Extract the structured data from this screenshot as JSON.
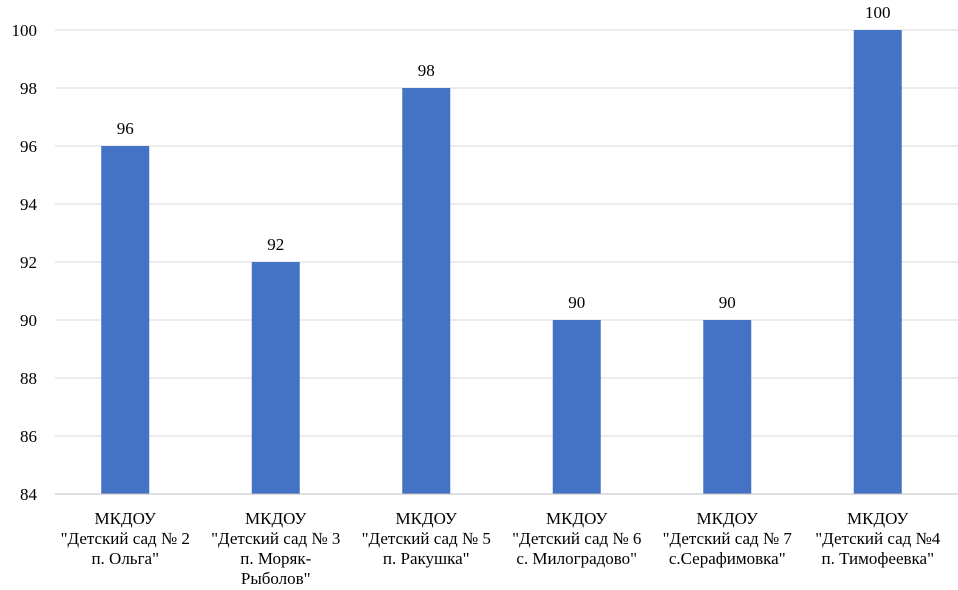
{
  "chart_data": {
    "type": "bar",
    "title": "",
    "xlabel": "",
    "ylabel": "",
    "ylim": [
      84,
      100
    ],
    "yticks": [
      84,
      86,
      88,
      90,
      92,
      94,
      96,
      98,
      100
    ],
    "grid": true,
    "legend": "none",
    "bar_color": "#4472C4",
    "categories": [
      [
        "МКДОУ",
        "\"Детский сад № 2",
        "п. Ольга\""
      ],
      [
        "МКДОУ",
        "\"Детский сад № 3",
        "п. Моряк-",
        "Рыболов\""
      ],
      [
        "МКДОУ",
        "\"Детский сад № 5",
        "п. Ракушка\""
      ],
      [
        "МКДОУ",
        "\"Детский сад № 6",
        "с. Милоградово\""
      ],
      [
        "МКДОУ",
        "\"Детский сад № 7",
        "с.Серафимовка\""
      ],
      [
        "МКДОУ",
        "\"Детский сад №4",
        "п. Тимофеевка\""
      ]
    ],
    "values": [
      96,
      92,
      98,
      90,
      90,
      100
    ]
  }
}
